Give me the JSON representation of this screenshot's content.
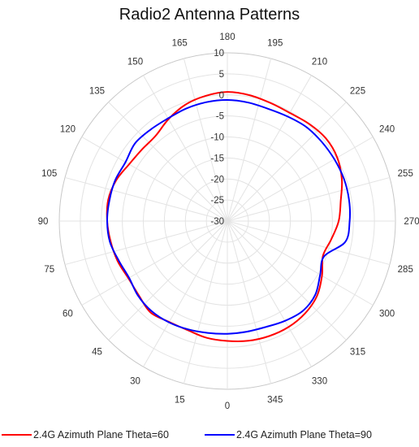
{
  "chart_data": {
    "type": "polar-line",
    "title": "Radio2 Antenna Patterns",
    "angular_axis": {
      "unit": "degrees",
      "zero_direction": "bottom",
      "direction": "counterclockwise",
      "tick_labels": [
        "0",
        "15",
        "30",
        "45",
        "60",
        "75",
        "90",
        "105",
        "120",
        "135",
        "150",
        "165",
        "180",
        "195",
        "210",
        "225",
        "240",
        "255",
        "270",
        "285",
        "300",
        "315",
        "330",
        "345"
      ]
    },
    "radial_axis": {
      "range": [
        -30,
        10
      ],
      "tick_labels": [
        "10",
        "5",
        "0",
        "-5",
        "-10",
        "-15",
        "-20",
        "-25",
        "-30"
      ],
      "tick_values": [
        10,
        5,
        0,
        -5,
        -10,
        -15,
        -20,
        -25,
        -30
      ]
    },
    "grid": true,
    "legend_position": "bottom",
    "series": [
      {
        "name": "2.4G Azimuth Plane Theta=60",
        "color": "#ff0000",
        "angles": [
          0,
          10,
          20,
          30,
          40,
          50,
          60,
          70,
          80,
          90,
          100,
          110,
          120,
          130,
          140,
          150,
          160,
          170,
          180,
          190,
          200,
          210,
          220,
          230,
          240,
          250,
          260,
          270,
          280,
          290,
          300,
          310,
          320,
          330,
          340,
          350
        ],
        "values": [
          -1.5,
          -1.8,
          -2.4,
          -2.3,
          -1.6,
          -2.5,
          -2.8,
          -2.2,
          -1.8,
          -1.4,
          -1.2,
          -1.8,
          -3.0,
          -3.5,
          -3.5,
          -2.0,
          -0.6,
          0.2,
          0.7,
          0.4,
          -0.1,
          -0.3,
          0.2,
          0.6,
          0.2,
          -1.0,
          -2.6,
          -3.5,
          -4.9,
          -5.8,
          -4.0,
          -2.2,
          -1.3,
          -0.9,
          -0.9,
          -1.1
        ]
      },
      {
        "name": "2.4G Azimuth Plane Theta=90",
        "color": "#0000ff",
        "angles": [
          0,
          10,
          20,
          30,
          40,
          50,
          60,
          70,
          80,
          90,
          100,
          110,
          120,
          130,
          140,
          150,
          160,
          170,
          180,
          190,
          200,
          210,
          220,
          230,
          240,
          250,
          260,
          270,
          280,
          290,
          300,
          310,
          320,
          330,
          340,
          350
        ],
        "values": [
          -3.2,
          -3.0,
          -2.6,
          -2.2,
          -2.0,
          -2.3,
          -3.0,
          -2.5,
          -1.6,
          -1.4,
          -1.5,
          -1.6,
          -2.0,
          -1.3,
          -1.6,
          -1.8,
          -1.5,
          -1.3,
          -1.2,
          -1.4,
          -1.6,
          -1.3,
          -0.8,
          -0.7,
          -0.6,
          -0.5,
          -0.6,
          -0.9,
          -1.5,
          -5.5,
          -4.5,
          -2.7,
          -2.1,
          -2.6,
          -3.2,
          -3.3
        ]
      }
    ]
  }
}
